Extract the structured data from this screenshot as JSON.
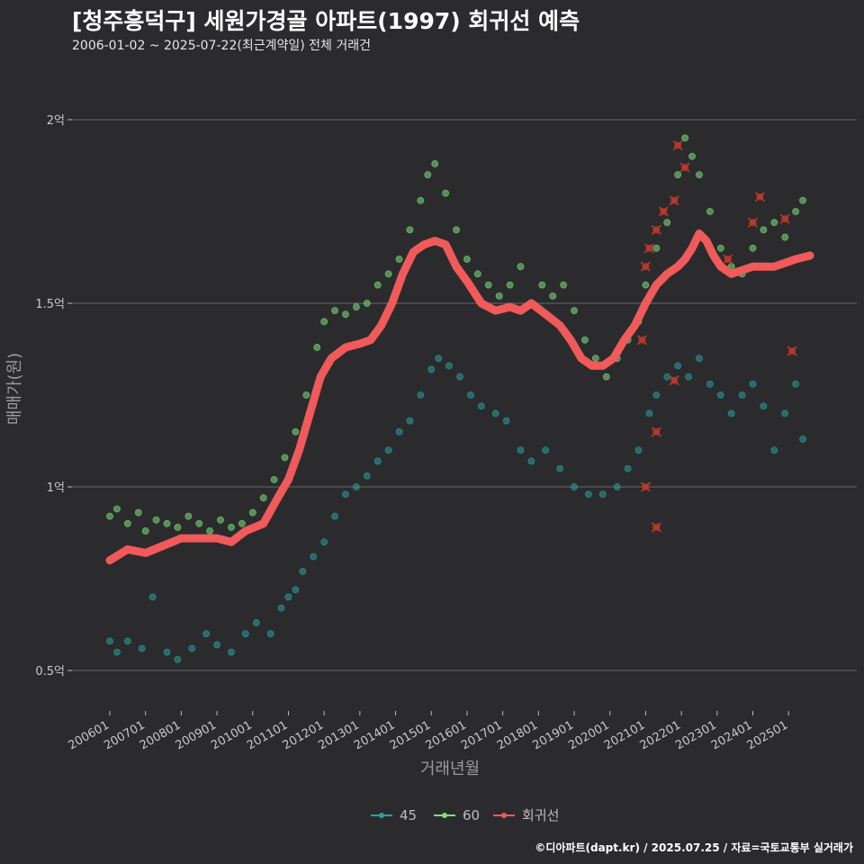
{
  "header": {
    "title": "[청주흥덕구] 세원가경골 아파트(1997) 회귀선 예측",
    "subtitle": "2006-01-02 ~ 2025-07-22(최근계약일) 전체 거래건"
  },
  "footer": {
    "caption": "©디아파트(dapt.kr) / 2025.07.25 / 자료=국토교통부 실거래가"
  },
  "colors": {
    "background": "#2b2b2e",
    "grid": "#6a6a6a",
    "s45": "#2aa19c",
    "s60": "#7ee07a",
    "regression": "#f05a5a",
    "marker_x": "#c0392b"
  },
  "chart_data": {
    "type": "scatter",
    "xlabel": "거래년월",
    "ylabel": "매매가(원)",
    "x_range": [
      2006.0,
      2025.6
    ],
    "ylim": [
      0.4,
      2.12
    ],
    "y_unit": "억",
    "y_ticks": [
      {
        "value": 0.5,
        "label": "0.5억"
      },
      {
        "value": 1.0,
        "label": "1억"
      },
      {
        "value": 1.5,
        "label": "1.5억"
      },
      {
        "value": 2.0,
        "label": "2억"
      }
    ],
    "x_ticks": [
      "200601",
      "200701",
      "200801",
      "200901",
      "201001",
      "201101",
      "201201",
      "201301",
      "201401",
      "201501",
      "201601",
      "201701",
      "201801",
      "201901",
      "202001",
      "202101",
      "202201",
      "202301",
      "202401",
      "202501"
    ],
    "grid": "horizontal",
    "legend": {
      "position": "bottom",
      "items": [
        {
          "key": "s45",
          "label": "45"
        },
        {
          "key": "s60",
          "label": "60"
        },
        {
          "key": "regression",
          "label": "회귀선"
        }
      ]
    },
    "series": [
      {
        "name": "45",
        "type": "scatter",
        "points": [
          [
            2006.0,
            0.58
          ],
          [
            2006.2,
            0.55
          ],
          [
            2006.5,
            0.58
          ],
          [
            2006.9,
            0.56
          ],
          [
            2007.2,
            0.7
          ],
          [
            2007.6,
            0.55
          ],
          [
            2007.9,
            0.53
          ],
          [
            2008.3,
            0.56
          ],
          [
            2008.7,
            0.6
          ],
          [
            2009.0,
            0.57
          ],
          [
            2009.4,
            0.55
          ],
          [
            2009.8,
            0.6
          ],
          [
            2010.1,
            0.63
          ],
          [
            2010.5,
            0.6
          ],
          [
            2010.8,
            0.67
          ],
          [
            2011.0,
            0.7
          ],
          [
            2011.2,
            0.72
          ],
          [
            2011.4,
            0.77
          ],
          [
            2011.7,
            0.81
          ],
          [
            2012.0,
            0.85
          ],
          [
            2012.3,
            0.92
          ],
          [
            2012.6,
            0.98
          ],
          [
            2012.9,
            1.0
          ],
          [
            2013.2,
            1.03
          ],
          [
            2013.5,
            1.07
          ],
          [
            2013.8,
            1.1
          ],
          [
            2014.1,
            1.15
          ],
          [
            2014.4,
            1.18
          ],
          [
            2014.7,
            1.25
          ],
          [
            2015.0,
            1.32
          ],
          [
            2015.2,
            1.35
          ],
          [
            2015.5,
            1.33
          ],
          [
            2015.8,
            1.3
          ],
          [
            2016.1,
            1.25
          ],
          [
            2016.4,
            1.22
          ],
          [
            2016.8,
            1.2
          ],
          [
            2017.1,
            1.18
          ],
          [
            2017.5,
            1.1
          ],
          [
            2017.8,
            1.07
          ],
          [
            2018.2,
            1.1
          ],
          [
            2018.6,
            1.05
          ],
          [
            2019.0,
            1.0
          ],
          [
            2019.4,
            0.98
          ],
          [
            2019.8,
            0.98
          ],
          [
            2020.2,
            1.0
          ],
          [
            2020.5,
            1.05
          ],
          [
            2020.8,
            1.1
          ],
          [
            2021.1,
            1.2
          ],
          [
            2021.3,
            1.25
          ],
          [
            2021.6,
            1.3
          ],
          [
            2021.9,
            1.33
          ],
          [
            2022.2,
            1.3
          ],
          [
            2022.5,
            1.35
          ],
          [
            2022.8,
            1.28
          ],
          [
            2023.1,
            1.25
          ],
          [
            2023.4,
            1.2
          ],
          [
            2023.7,
            1.25
          ],
          [
            2024.0,
            1.28
          ],
          [
            2024.3,
            1.22
          ],
          [
            2024.6,
            1.1
          ],
          [
            2024.9,
            1.2
          ],
          [
            2025.2,
            1.28
          ],
          [
            2025.4,
            1.13
          ]
        ]
      },
      {
        "name": "60",
        "type": "scatter",
        "points": [
          [
            2006.0,
            0.92
          ],
          [
            2006.2,
            0.94
          ],
          [
            2006.5,
            0.9
          ],
          [
            2006.8,
            0.93
          ],
          [
            2007.0,
            0.88
          ],
          [
            2007.3,
            0.91
          ],
          [
            2007.6,
            0.9
          ],
          [
            2007.9,
            0.89
          ],
          [
            2008.2,
            0.92
          ],
          [
            2008.5,
            0.9
          ],
          [
            2008.8,
            0.88
          ],
          [
            2009.1,
            0.91
          ],
          [
            2009.4,
            0.89
          ],
          [
            2009.7,
            0.9
          ],
          [
            2010.0,
            0.93
          ],
          [
            2010.3,
            0.97
          ],
          [
            2010.6,
            1.02
          ],
          [
            2010.9,
            1.08
          ],
          [
            2011.2,
            1.15
          ],
          [
            2011.5,
            1.25
          ],
          [
            2011.8,
            1.38
          ],
          [
            2012.0,
            1.45
          ],
          [
            2012.3,
            1.48
          ],
          [
            2012.6,
            1.47
          ],
          [
            2012.9,
            1.49
          ],
          [
            2013.2,
            1.5
          ],
          [
            2013.5,
            1.55
          ],
          [
            2013.8,
            1.58
          ],
          [
            2014.1,
            1.62
          ],
          [
            2014.4,
            1.7
          ],
          [
            2014.7,
            1.78
          ],
          [
            2014.9,
            1.85
          ],
          [
            2015.1,
            1.88
          ],
          [
            2015.4,
            1.8
          ],
          [
            2015.7,
            1.7
          ],
          [
            2016.0,
            1.62
          ],
          [
            2016.3,
            1.58
          ],
          [
            2016.6,
            1.55
          ],
          [
            2016.9,
            1.52
          ],
          [
            2017.2,
            1.55
          ],
          [
            2017.5,
            1.6
          ],
          [
            2017.8,
            1.5
          ],
          [
            2018.1,
            1.55
          ],
          [
            2018.4,
            1.52
          ],
          [
            2018.7,
            1.55
          ],
          [
            2019.0,
            1.48
          ],
          [
            2019.3,
            1.4
          ],
          [
            2019.6,
            1.35
          ],
          [
            2019.9,
            1.3
          ],
          [
            2020.2,
            1.35
          ],
          [
            2020.5,
            1.4
          ],
          [
            2020.8,
            1.45
          ],
          [
            2021.0,
            1.55
          ],
          [
            2021.3,
            1.65
          ],
          [
            2021.6,
            1.72
          ],
          [
            2021.9,
            1.85
          ],
          [
            2022.1,
            1.95
          ],
          [
            2022.3,
            1.9
          ],
          [
            2022.5,
            1.85
          ],
          [
            2022.8,
            1.75
          ],
          [
            2023.1,
            1.65
          ],
          [
            2023.4,
            1.6
          ],
          [
            2023.7,
            1.58
          ],
          [
            2024.0,
            1.65
          ],
          [
            2024.3,
            1.7
          ],
          [
            2024.6,
            1.72
          ],
          [
            2024.9,
            1.68
          ],
          [
            2025.2,
            1.75
          ],
          [
            2025.4,
            1.78
          ]
        ]
      },
      {
        "name": "회귀선",
        "type": "line",
        "points": [
          [
            2006.0,
            0.8
          ],
          [
            2006.5,
            0.83
          ],
          [
            2007.0,
            0.82
          ],
          [
            2007.5,
            0.84
          ],
          [
            2008.0,
            0.86
          ],
          [
            2008.5,
            0.86
          ],
          [
            2009.0,
            0.86
          ],
          [
            2009.4,
            0.85
          ],
          [
            2009.8,
            0.88
          ],
          [
            2010.3,
            0.9
          ],
          [
            2010.7,
            0.97
          ],
          [
            2011.0,
            1.02
          ],
          [
            2011.3,
            1.1
          ],
          [
            2011.6,
            1.2
          ],
          [
            2011.9,
            1.3
          ],
          [
            2012.2,
            1.35
          ],
          [
            2012.6,
            1.38
          ],
          [
            2013.0,
            1.39
          ],
          [
            2013.3,
            1.4
          ],
          [
            2013.6,
            1.44
          ],
          [
            2013.9,
            1.5
          ],
          [
            2014.2,
            1.58
          ],
          [
            2014.5,
            1.64
          ],
          [
            2014.8,
            1.66
          ],
          [
            2015.1,
            1.67
          ],
          [
            2015.4,
            1.66
          ],
          [
            2015.7,
            1.6
          ],
          [
            2016.0,
            1.56
          ],
          [
            2016.4,
            1.5
          ],
          [
            2016.8,
            1.48
          ],
          [
            2017.2,
            1.49
          ],
          [
            2017.5,
            1.48
          ],
          [
            2017.8,
            1.5
          ],
          [
            2018.2,
            1.47
          ],
          [
            2018.6,
            1.44
          ],
          [
            2018.9,
            1.4
          ],
          [
            2019.2,
            1.35
          ],
          [
            2019.5,
            1.33
          ],
          [
            2019.8,
            1.33
          ],
          [
            2020.1,
            1.35
          ],
          [
            2020.4,
            1.4
          ],
          [
            2020.7,
            1.44
          ],
          [
            2021.0,
            1.5
          ],
          [
            2021.3,
            1.55
          ],
          [
            2021.6,
            1.58
          ],
          [
            2021.9,
            1.6
          ],
          [
            2022.1,
            1.62
          ],
          [
            2022.3,
            1.65
          ],
          [
            2022.5,
            1.69
          ],
          [
            2022.7,
            1.67
          ],
          [
            2022.9,
            1.63
          ],
          [
            2023.1,
            1.6
          ],
          [
            2023.4,
            1.58
          ],
          [
            2023.7,
            1.59
          ],
          [
            2024.0,
            1.6
          ],
          [
            2024.3,
            1.6
          ],
          [
            2024.6,
            1.6
          ],
          [
            2024.9,
            1.61
          ],
          [
            2025.2,
            1.62
          ],
          [
            2025.6,
            1.63
          ]
        ]
      }
    ],
    "marked_trades": [
      [
        2020.9,
        1.4
      ],
      [
        2021.0,
        1.6
      ],
      [
        2021.1,
        1.65
      ],
      [
        2021.3,
        1.7
      ],
      [
        2021.5,
        1.75
      ],
      [
        2021.8,
        1.78
      ],
      [
        2021.9,
        1.93
      ],
      [
        2022.1,
        1.87
      ],
      [
        2021.0,
        1.0
      ],
      [
        2021.3,
        0.89
      ],
      [
        2021.3,
        1.15
      ],
      [
        2021.8,
        1.29
      ],
      [
        2023.3,
        1.62
      ],
      [
        2024.0,
        1.72
      ],
      [
        2024.2,
        1.79
      ],
      [
        2024.9,
        1.73
      ],
      [
        2025.1,
        1.37
      ]
    ]
  }
}
